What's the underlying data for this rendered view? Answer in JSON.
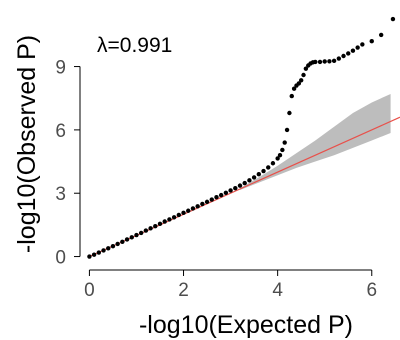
{
  "chart_data": {
    "type": "scatter",
    "title": "",
    "xlabel": "-log10(Expected P)",
    "ylabel": "-log10(Observed P)",
    "annotation": "λ=0.991",
    "xlim": [
      -0.2,
      6.6
    ],
    "ylim": [
      -0.4,
      11.3
    ],
    "xticks": [
      0,
      2,
      4,
      6
    ],
    "yticks": [
      0,
      3,
      6,
      9
    ],
    "grid": false,
    "legend": "none",
    "colors": {
      "points": "#000000",
      "expected_line": "#e8504a",
      "confidence_band": "#bdbdbd",
      "axis": "#000000"
    },
    "expected_line": {
      "x": [
        0,
        6.6
      ],
      "y": [
        0,
        6.6
      ]
    },
    "confidence_band": {
      "x": [
        3.2,
        3.6,
        4.0,
        4.4,
        4.8,
        5.2,
        5.6,
        6.0,
        6.4
      ],
      "upper": [
        3.25,
        3.75,
        4.3,
        4.9,
        5.5,
        6.15,
        6.8,
        7.3,
        7.7
      ],
      "lower": [
        3.15,
        3.5,
        3.85,
        4.2,
        4.5,
        4.8,
        5.15,
        5.5,
        5.85
      ]
    },
    "series": [
      {
        "x": [
          0.0,
          0.1,
          0.2,
          0.3,
          0.4,
          0.5,
          0.6,
          0.7,
          0.8,
          0.9,
          1.0,
          1.1,
          1.2,
          1.3,
          1.4,
          1.5,
          1.6,
          1.7,
          1.8,
          1.9,
          2.0,
          2.1,
          2.2,
          2.3,
          2.4,
          2.5,
          2.6,
          2.7,
          2.8,
          2.9,
          3.0,
          3.1,
          3.2,
          3.3,
          3.4,
          3.5,
          3.6,
          3.7,
          3.8,
          3.9,
          4.0,
          4.05,
          4.1,
          4.15,
          4.2,
          4.25,
          4.3,
          4.35,
          4.4,
          4.45,
          4.5,
          4.55,
          4.6,
          4.65,
          4.7,
          4.75,
          4.8,
          4.9,
          5.0,
          5.1,
          5.2,
          5.3,
          5.4,
          5.5,
          5.6,
          5.7,
          5.8,
          6.0,
          6.2,
          6.45
        ],
        "y": [
          0.0,
          0.09,
          0.19,
          0.29,
          0.39,
          0.49,
          0.6,
          0.7,
          0.81,
          0.91,
          1.02,
          1.12,
          1.23,
          1.34,
          1.44,
          1.55,
          1.66,
          1.76,
          1.86,
          1.97,
          2.07,
          2.17,
          2.28,
          2.38,
          2.49,
          2.59,
          2.7,
          2.81,
          2.91,
          3.02,
          3.13,
          3.24,
          3.36,
          3.48,
          3.61,
          3.75,
          3.9,
          4.05,
          4.22,
          4.42,
          4.65,
          4.8,
          5.05,
          5.4,
          6.0,
          6.8,
          7.6,
          7.95,
          8.1,
          8.2,
          8.35,
          8.6,
          8.9,
          9.05,
          9.15,
          9.2,
          9.22,
          9.22,
          9.24,
          9.25,
          9.27,
          9.38,
          9.5,
          9.62,
          9.75,
          9.9,
          10.05,
          10.2,
          10.5,
          11.25
        ]
      }
    ]
  }
}
